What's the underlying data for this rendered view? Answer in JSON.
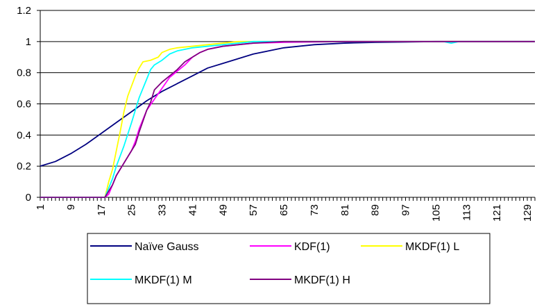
{
  "chart_data": {
    "type": "line",
    "title": "",
    "xlabel": "",
    "ylabel": "",
    "ylim": [
      0,
      1.2
    ],
    "xlim": [
      1,
      131
    ],
    "yticks": [
      "0",
      "0.2",
      "0.4",
      "0.6",
      "0.8",
      "1",
      "1.2"
    ],
    "xticks": [
      "1",
      "9",
      "17",
      "25",
      "33",
      "41",
      "49",
      "57",
      "65",
      "73",
      "81",
      "89",
      "97",
      "105",
      "113",
      "121",
      "129"
    ],
    "grid": "horizontal",
    "legend_position": "bottom",
    "series": [
      {
        "name": "Naïve Gauss",
        "color": "#000080",
        "points": [
          [
            1,
            0.2
          ],
          [
            5,
            0.23
          ],
          [
            9,
            0.28
          ],
          [
            13,
            0.34
          ],
          [
            17,
            0.41
          ],
          [
            21,
            0.48
          ],
          [
            25,
            0.55
          ],
          [
            29,
            0.62
          ],
          [
            33,
            0.68
          ],
          [
            37,
            0.73
          ],
          [
            41,
            0.78
          ],
          [
            45,
            0.83
          ],
          [
            49,
            0.86
          ],
          [
            53,
            0.89
          ],
          [
            57,
            0.92
          ],
          [
            61,
            0.94
          ],
          [
            65,
            0.96
          ],
          [
            69,
            0.97
          ],
          [
            73,
            0.98
          ],
          [
            77,
            0.985
          ],
          [
            81,
            0.99
          ],
          [
            89,
            0.995
          ],
          [
            97,
            0.997
          ],
          [
            105,
            1.0
          ],
          [
            131,
            1.0
          ]
        ]
      },
      {
        "name": "KDF(1)",
        "color": "#ff00ff",
        "points": [
          [
            1,
            0
          ],
          [
            18,
            0
          ],
          [
            19,
            0.02
          ],
          [
            20,
            0.08
          ],
          [
            21,
            0.14
          ],
          [
            23,
            0.22
          ],
          [
            25,
            0.3
          ],
          [
            26,
            0.36
          ],
          [
            27,
            0.44
          ],
          [
            29,
            0.56
          ],
          [
            31,
            0.63
          ],
          [
            33,
            0.7
          ],
          [
            35,
            0.77
          ],
          [
            37,
            0.81
          ],
          [
            39,
            0.85
          ],
          [
            41,
            0.9
          ],
          [
            43,
            0.93
          ],
          [
            45,
            0.95
          ],
          [
            49,
            0.97
          ],
          [
            53,
            0.98
          ],
          [
            57,
            0.99
          ],
          [
            65,
            0.995
          ],
          [
            81,
            1.0
          ],
          [
            131,
            1.0
          ]
        ]
      },
      {
        "name": "MKDF(1) L",
        "color": "#ffff00",
        "points": [
          [
            1,
            0
          ],
          [
            18,
            0
          ],
          [
            19,
            0.1
          ],
          [
            20,
            0.18
          ],
          [
            21,
            0.3
          ],
          [
            22,
            0.42
          ],
          [
            23,
            0.55
          ],
          [
            24,
            0.65
          ],
          [
            26,
            0.78
          ],
          [
            27,
            0.83
          ],
          [
            28,
            0.87
          ],
          [
            30,
            0.88
          ],
          [
            32,
            0.9
          ],
          [
            33,
            0.93
          ],
          [
            35,
            0.95
          ],
          [
            37,
            0.96
          ],
          [
            41,
            0.97
          ],
          [
            45,
            0.98
          ],
          [
            49,
            0.99
          ],
          [
            53,
            1.0
          ],
          [
            131,
            1.0
          ]
        ]
      },
      {
        "name": "MKDF(1) M",
        "color": "#00ffff",
        "points": [
          [
            1,
            0
          ],
          [
            18,
            0
          ],
          [
            19,
            0.06
          ],
          [
            20,
            0.12
          ],
          [
            21,
            0.2
          ],
          [
            23,
            0.33
          ],
          [
            25,
            0.48
          ],
          [
            27,
            0.64
          ],
          [
            29,
            0.76
          ],
          [
            30,
            0.82
          ],
          [
            31,
            0.85
          ],
          [
            33,
            0.88
          ],
          [
            35,
            0.92
          ],
          [
            37,
            0.94
          ],
          [
            41,
            0.96
          ],
          [
            45,
            0.97
          ],
          [
            49,
            0.98
          ],
          [
            53,
            0.99
          ],
          [
            57,
            1.0
          ],
          [
            107,
            1.0
          ],
          [
            109,
            0.99
          ],
          [
            111,
            1.0
          ],
          [
            131,
            1.0
          ]
        ]
      },
      {
        "name": "MKDF(1) H",
        "color": "#800080",
        "points": [
          [
            1,
            0
          ],
          [
            18,
            0
          ],
          [
            19,
            0.04
          ],
          [
            20,
            0.08
          ],
          [
            21,
            0.14
          ],
          [
            23,
            0.22
          ],
          [
            25,
            0.3
          ],
          [
            26,
            0.34
          ],
          [
            27,
            0.42
          ],
          [
            29,
            0.56
          ],
          [
            30,
            0.61
          ],
          [
            31,
            0.69
          ],
          [
            33,
            0.74
          ],
          [
            35,
            0.78
          ],
          [
            37,
            0.82
          ],
          [
            39,
            0.87
          ],
          [
            41,
            0.9
          ],
          [
            43,
            0.93
          ],
          [
            45,
            0.95
          ],
          [
            49,
            0.97
          ],
          [
            53,
            0.98
          ],
          [
            57,
            0.99
          ],
          [
            65,
            1.0
          ],
          [
            131,
            1.0
          ]
        ]
      }
    ]
  }
}
